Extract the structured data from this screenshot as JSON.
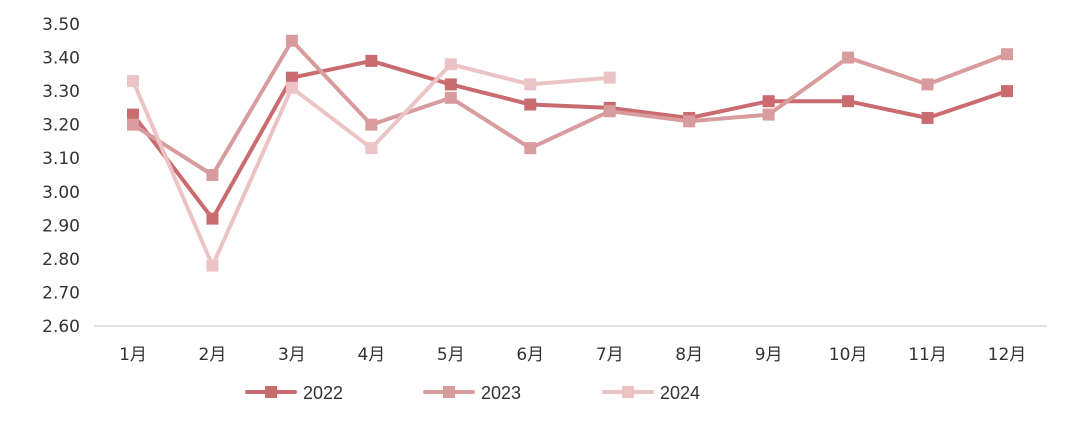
{
  "chart_data": {
    "type": "line",
    "categories": [
      "1月",
      "2月",
      "3月",
      "4月",
      "5月",
      "6月",
      "7月",
      "8月",
      "9月",
      "10月",
      "11月",
      "12月"
    ],
    "ylim": [
      2.6,
      3.5
    ],
    "yticks": [
      "2.60",
      "2.70",
      "2.80",
      "2.90",
      "3.00",
      "3.10",
      "3.20",
      "3.30",
      "3.40",
      "3.50"
    ],
    "ytick_values": [
      2.6,
      2.7,
      2.8,
      2.9,
      3.0,
      3.1,
      3.2,
      3.3,
      3.4,
      3.5
    ],
    "grid": false,
    "legend_position": "bottom-left",
    "marker": "square",
    "series": [
      {
        "name": "2022",
        "color": "#c96b6f",
        "values": [
          3.23,
          2.92,
          3.34,
          3.39,
          3.32,
          3.26,
          3.25,
          3.22,
          3.27,
          3.27,
          3.22,
          3.3
        ]
      },
      {
        "name": "2023",
        "color": "#d99c9e",
        "values": [
          3.2,
          3.05,
          3.45,
          3.2,
          3.28,
          3.13,
          3.24,
          3.21,
          3.23,
          3.4,
          3.32,
          3.41
        ]
      },
      {
        "name": "2024",
        "color": "#ecc4c6",
        "values": [
          3.33,
          2.78,
          3.31,
          3.13,
          3.38,
          3.32,
          3.34,
          null,
          null,
          null,
          null,
          null
        ]
      }
    ]
  }
}
